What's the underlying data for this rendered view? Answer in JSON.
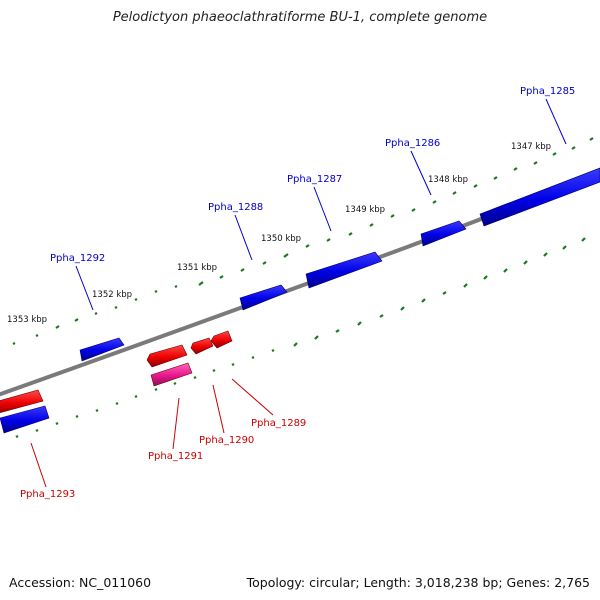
{
  "title": "Pelodictyon phaeoclathratiforme BU-1, complete genome",
  "footer": {
    "accession": "Accession: NC_011060",
    "summary": "Topology: circular; Length: 3,018,238 bp; Genes: 2,765"
  },
  "colors": {
    "forward_strand": "#0000ee",
    "reverse_strand": "#ee0000",
    "pseudo_gene": "#e8168c",
    "backbone": "#7a7a7a",
    "tick": "#1a7a1a",
    "forward_label": "#0000cc",
    "reverse_label": "#cc0000"
  },
  "scale_labels": [
    "1353 kbp",
    "1352 kbp",
    "1351 kbp",
    "1350 kbp",
    "1349 kbp",
    "1348 kbp",
    "1347 kbp"
  ],
  "genes_forward": [
    {
      "id": "Ppha_1285",
      "label": "Ppha_1285"
    },
    {
      "id": "Ppha_1286",
      "label": "Ppha_1286"
    },
    {
      "id": "Ppha_1287",
      "label": "Ppha_1287"
    },
    {
      "id": "Ppha_1288",
      "label": "Ppha_1288"
    },
    {
      "id": "Ppha_1292",
      "label": "Ppha_1292"
    }
  ],
  "genes_reverse": [
    {
      "id": "Ppha_1289",
      "label": "Ppha_1289"
    },
    {
      "id": "Ppha_1290",
      "label": "Ppha_1290"
    },
    {
      "id": "Ppha_1291",
      "label": "Ppha_1291"
    },
    {
      "id": "Ppha_1293",
      "label": "Ppha_1293"
    }
  ]
}
